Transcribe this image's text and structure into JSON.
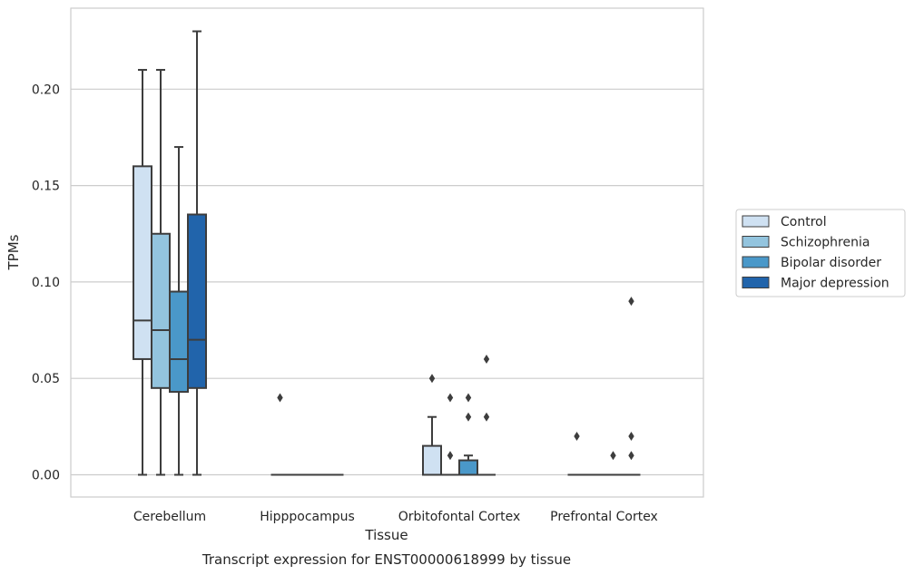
{
  "chart_data": {
    "type": "box",
    "title": "",
    "caption": "Transcript expression for ENST00000618999 by tissue",
    "xlabel": "Tissue",
    "ylabel": "TPMs",
    "ylim": [
      -0.011,
      0.241
    ],
    "yticks": [
      0.0,
      0.05,
      0.1,
      0.15,
      0.2
    ],
    "ytick_labels": [
      "0.00",
      "0.05",
      "0.10",
      "0.15",
      "0.20"
    ],
    "grid": "horizontal",
    "legend_position": "right",
    "categories": [
      "Cerebellum",
      "Hipppocampus",
      "Orbitofontal Cortex",
      "Prefrontal Cortex"
    ],
    "series": [
      {
        "name": "Control",
        "color": "#cfe1f2",
        "boxes": [
          {
            "whislo": 0.0,
            "q1": 0.06,
            "med": 0.08,
            "q3": 0.16,
            "whishi": 0.21,
            "fliers": []
          },
          {
            "whislo": 0.0,
            "q1": 0.0,
            "med": 0.0,
            "q3": 0.0,
            "whishi": 0.0,
            "fliers": [
              0.04
            ]
          },
          {
            "whislo": 0.0,
            "q1": 0.0,
            "med": 0.0,
            "q3": 0.015,
            "whishi": 0.03,
            "fliers": [
              0.05
            ]
          },
          {
            "whislo": 0.0,
            "q1": 0.0,
            "med": 0.0,
            "q3": 0.0,
            "whishi": 0.0,
            "fliers": [
              0.02
            ]
          }
        ]
      },
      {
        "name": "Schizophrenia",
        "color": "#93c4de",
        "boxes": [
          {
            "whislo": 0.0,
            "q1": 0.045,
            "med": 0.075,
            "q3": 0.125,
            "whishi": 0.21,
            "fliers": []
          },
          {
            "whislo": 0.0,
            "q1": 0.0,
            "med": 0.0,
            "q3": 0.0,
            "whishi": 0.0,
            "fliers": []
          },
          {
            "whislo": 0.0,
            "q1": 0.0,
            "med": 0.0,
            "q3": 0.0,
            "whishi": 0.0,
            "fliers": [
              0.04,
              0.01
            ]
          },
          {
            "whislo": 0.0,
            "q1": 0.0,
            "med": 0.0,
            "q3": 0.0,
            "whishi": 0.0,
            "fliers": []
          }
        ]
      },
      {
        "name": "Bipolar disorder",
        "color": "#4a98c9",
        "boxes": [
          {
            "whislo": 0.0,
            "q1": 0.043,
            "med": 0.06,
            "q3": 0.095,
            "whishi": 0.17,
            "fliers": []
          },
          {
            "whislo": 0.0,
            "q1": 0.0,
            "med": 0.0,
            "q3": 0.0,
            "whishi": 0.0,
            "fliers": []
          },
          {
            "whislo": 0.0,
            "q1": 0.0,
            "med": 0.0,
            "q3": 0.0075,
            "whishi": 0.01,
            "fliers": [
              0.04,
              0.03
            ]
          },
          {
            "whislo": 0.0,
            "q1": 0.0,
            "med": 0.0,
            "q3": 0.0,
            "whishi": 0.0,
            "fliers": [
              0.01
            ]
          }
        ]
      },
      {
        "name": "Major depression",
        "color": "#2164ab",
        "boxes": [
          {
            "whislo": 0.0,
            "q1": 0.045,
            "med": 0.07,
            "q3": 0.135,
            "whishi": 0.23,
            "fliers": []
          },
          {
            "whislo": 0.0,
            "q1": 0.0,
            "med": 0.0,
            "q3": 0.0,
            "whishi": 0.0,
            "fliers": []
          },
          {
            "whislo": 0.0,
            "q1": 0.0,
            "med": 0.0,
            "q3": 0.0,
            "whishi": 0.0,
            "fliers": [
              0.06,
              0.03
            ]
          },
          {
            "whislo": 0.0,
            "q1": 0.0,
            "med": 0.0,
            "q3": 0.0,
            "whishi": 0.0,
            "fliers": [
              0.09,
              0.02,
              0.01
            ]
          }
        ]
      }
    ]
  }
}
